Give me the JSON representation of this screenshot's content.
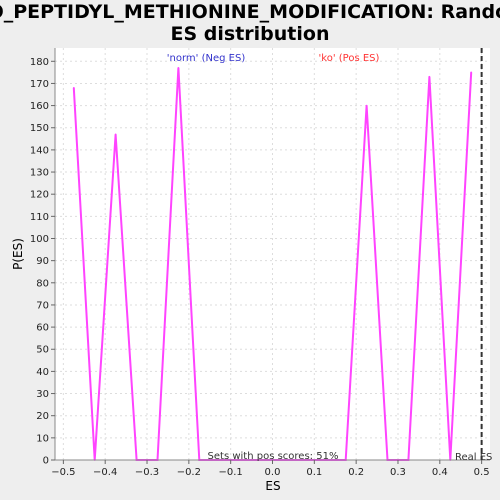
{
  "chart_data": {
    "type": "line",
    "title_lines": [
      "GO_PEPTIDYL_METHIONINE_MODIFICATION: Random",
      "ES distribution"
    ],
    "xlabel": "ES",
    "ylabel": "P(ES)",
    "xlim": [
      -0.52,
      0.52
    ],
    "ylim": [
      0,
      186
    ],
    "x_ticks": [
      -0.5,
      -0.4,
      -0.3,
      -0.2,
      -0.1,
      0.0,
      0.1,
      0.2,
      0.3,
      0.4,
      0.5
    ],
    "x_tick_labels": [
      "−0.5",
      "−0.4",
      "−0.3",
      "−0.2",
      "−0.1",
      "0.0",
      "0.1",
      "0.2",
      "0.3",
      "0.4",
      "0.5"
    ],
    "y_ticks": [
      0,
      10,
      20,
      30,
      40,
      50,
      60,
      70,
      80,
      90,
      100,
      110,
      120,
      130,
      140,
      150,
      160,
      170,
      180
    ],
    "grid": true,
    "series": [
      {
        "color": "#ff44ff",
        "x": [
          -0.475,
          -0.425,
          -0.375,
          -0.325,
          -0.275,
          -0.225,
          -0.175,
          -0.125,
          -0.075,
          -0.025,
          0.025,
          0.075,
          0.125,
          0.175,
          0.225,
          0.275,
          0.325,
          0.375,
          0.425,
          0.475
        ],
        "y": [
          168,
          0,
          147,
          0,
          0,
          177,
          0,
          0,
          0,
          0,
          0,
          0,
          0,
          0,
          160,
          0,
          0,
          173,
          0,
          175
        ]
      }
    ],
    "legend": [
      {
        "label": "'norm' (Neg ES)",
        "color": "#3333cc"
      },
      {
        "label": "'ko' (Pos ES)",
        "color": "#ff3333"
      }
    ],
    "annotation": "Sets with pos scores: 51%",
    "real_es": {
      "label": "Real ES",
      "x": 0.5
    }
  }
}
